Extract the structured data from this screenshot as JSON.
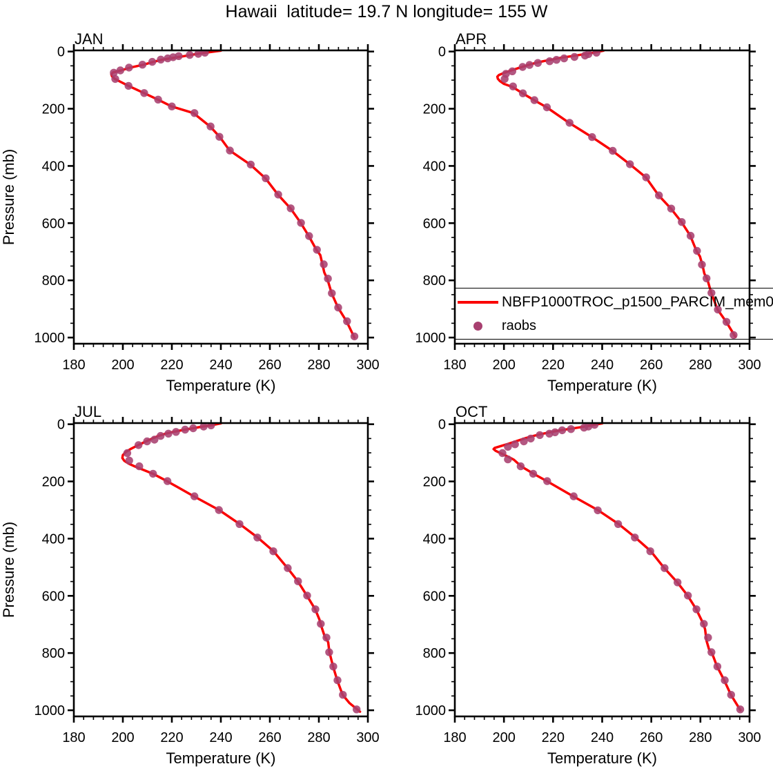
{
  "title": "Hawaii  latitude= 19.7 N longitude= 155 W",
  "legend": {
    "line_label": "NBFP1000TROC_p1500_PARCIM_mem0",
    "dot_label": "raobs",
    "position": "overlay-middle-right"
  },
  "colors": {
    "model_line": "#fa0000",
    "raobs_dot": "#a84070",
    "axis": "#000000",
    "background": "#ffffff"
  },
  "chart_data": {
    "type": "line",
    "title": "Hawaii  latitude= 19.7 N longitude= 155 W",
    "xlabel": "Temperature (K)",
    "ylabel": "Pressure (mb)",
    "x_axis": {
      "min": 180,
      "max": 300,
      "major_ticks": [
        180,
        200,
        220,
        240,
        260,
        280,
        300
      ],
      "minor_step": 4
    },
    "y_axis": {
      "min": 0,
      "max": 1000,
      "major_ticks": [
        0,
        200,
        400,
        600,
        800,
        1000
      ],
      "minor_step": 50,
      "reversed": true,
      "edge_min": -4,
      "edge_max": 1021.5
    },
    "grid": false,
    "series_info": [
      {
        "name": "NBFP1000TROC_p1500_PARCIM_mem0",
        "type": "line",
        "color": "#fa0000"
      },
      {
        "name": "raobs",
        "type": "scatter",
        "color": "#a84070"
      }
    ],
    "panels": [
      {
        "month": "JAN",
        "model_line": [
          [
            240,
            -3
          ],
          [
            235.5,
            2
          ],
          [
            232,
            6
          ],
          [
            228.5,
            11
          ],
          [
            225,
            16
          ],
          [
            221.5,
            21
          ],
          [
            218.5,
            25
          ],
          [
            215.8,
            29
          ],
          [
            212.5,
            36
          ],
          [
            208.5,
            46
          ],
          [
            203,
            56
          ],
          [
            199.3,
            66
          ],
          [
            196,
            73
          ],
          [
            195.3,
            80
          ],
          [
            195.6,
            87
          ],
          [
            196.8,
            96
          ],
          [
            199.3,
            107
          ],
          [
            202.3,
            120
          ],
          [
            208.6,
            145
          ],
          [
            214.3,
            168
          ],
          [
            219.9,
            192
          ],
          [
            228.8,
            215
          ],
          [
            235.6,
            262
          ],
          [
            239.5,
            298
          ],
          [
            243.6,
            346
          ],
          [
            252,
            395
          ],
          [
            258.2,
            443
          ],
          [
            263.3,
            500
          ],
          [
            268.4,
            548
          ],
          [
            272.6,
            599
          ],
          [
            275.9,
            645
          ],
          [
            279,
            693
          ],
          [
            280.6,
            712
          ],
          [
            281.4,
            742
          ],
          [
            282.2,
            772
          ],
          [
            283.5,
            796
          ],
          [
            285.2,
            845
          ],
          [
            287.8,
            895
          ],
          [
            291.3,
            943
          ],
          [
            294.5,
            1000
          ]
        ],
        "raobs": [
          [
            233.5,
            4
          ],
          [
            230.8,
            8
          ],
          [
            227.3,
            12
          ],
          [
            222.8,
            16
          ],
          [
            220.5,
            20
          ],
          [
            218.3,
            24
          ],
          [
            215.5,
            28
          ],
          [
            212,
            36
          ],
          [
            208,
            46
          ],
          [
            202.5,
            56
          ],
          [
            199,
            66
          ],
          [
            196.3,
            74
          ],
          [
            196.9,
            96
          ],
          [
            202.3,
            120
          ],
          [
            208.7,
            145
          ],
          [
            214.4,
            168
          ],
          [
            220,
            192
          ],
          [
            229.2,
            215
          ],
          [
            235.8,
            262
          ],
          [
            239.4,
            298
          ],
          [
            243.7,
            346
          ],
          [
            252.2,
            395
          ],
          [
            258.3,
            443
          ],
          [
            263.4,
            500
          ],
          [
            268.5,
            548
          ],
          [
            272.7,
            599
          ],
          [
            276,
            645
          ],
          [
            279.2,
            693
          ],
          [
            282,
            744
          ],
          [
            283.7,
            794
          ],
          [
            285.3,
            845
          ],
          [
            287.9,
            895
          ],
          [
            291.5,
            943
          ],
          [
            294.5,
            996
          ]
        ]
      },
      {
        "month": "APR",
        "model_line": [
          [
            240.5,
            -3
          ],
          [
            236.5,
            4
          ],
          [
            231.5,
            11
          ],
          [
            227,
            17
          ],
          [
            223,
            22
          ],
          [
            219.5,
            28
          ],
          [
            216,
            34
          ],
          [
            212.5,
            41
          ],
          [
            209.5,
            48
          ],
          [
            206.5,
            56
          ],
          [
            203,
            66
          ],
          [
            200,
            75
          ],
          [
            198,
            82
          ],
          [
            197.3,
            88
          ],
          [
            197.5,
            95
          ],
          [
            198.3,
            103
          ],
          [
            200,
            113
          ],
          [
            203.5,
            124
          ],
          [
            207.6,
            146
          ],
          [
            212.3,
            170
          ],
          [
            217.4,
            195
          ],
          [
            226.5,
            249
          ],
          [
            235.8,
            299
          ],
          [
            244.2,
            347
          ],
          [
            251.2,
            394
          ],
          [
            257.8,
            440
          ],
          [
            263,
            503
          ],
          [
            268,
            549
          ],
          [
            272.3,
            596
          ],
          [
            275.9,
            644
          ],
          [
            278.4,
            697
          ],
          [
            279.8,
            716
          ],
          [
            280.8,
            746
          ],
          [
            281.6,
            776
          ],
          [
            282.8,
            796
          ],
          [
            284.4,
            844
          ],
          [
            287,
            902
          ],
          [
            290.5,
            945
          ],
          [
            294.3,
            998
          ]
        ],
        "raobs": [
          [
            237.7,
            4
          ],
          [
            234.4,
            9
          ],
          [
            233,
            14
          ],
          [
            228.7,
            19
          ],
          [
            224.5,
            24
          ],
          [
            221.4,
            29
          ],
          [
            218.6,
            34
          ],
          [
            213.8,
            40
          ],
          [
            210.4,
            47
          ],
          [
            207.6,
            54
          ],
          [
            203.4,
            69
          ],
          [
            200.8,
            78
          ],
          [
            200.3,
            96
          ],
          [
            203.7,
            122
          ],
          [
            207.7,
            146
          ],
          [
            212.4,
            170
          ],
          [
            217.5,
            195
          ],
          [
            226.7,
            249
          ],
          [
            235.9,
            299
          ],
          [
            244.3,
            347
          ],
          [
            251.3,
            394
          ],
          [
            257.9,
            440
          ],
          [
            263.1,
            503
          ],
          [
            268.1,
            549
          ],
          [
            272.4,
            596
          ],
          [
            276,
            644
          ],
          [
            278.6,
            697
          ],
          [
            280.6,
            745
          ],
          [
            282.5,
            793
          ],
          [
            284.5,
            844
          ],
          [
            287.1,
            902
          ],
          [
            290.6,
            945
          ],
          [
            293.5,
            991
          ]
        ]
      },
      {
        "month": "JUL",
        "model_line": [
          [
            240,
            -3
          ],
          [
            236.5,
            3
          ],
          [
            232,
            9
          ],
          [
            228,
            15
          ],
          [
            224,
            21
          ],
          [
            220.5,
            27
          ],
          [
            217.5,
            33
          ],
          [
            214.5,
            41
          ],
          [
            212,
            50
          ],
          [
            209.5,
            60
          ],
          [
            206.5,
            72
          ],
          [
            203.5,
            85
          ],
          [
            201.2,
            97
          ],
          [
            200,
            108
          ],
          [
            199.8,
            118
          ],
          [
            200.6,
            128
          ],
          [
            202.4,
            138
          ],
          [
            205,
            148
          ],
          [
            208.5,
            160
          ],
          [
            212.5,
            174
          ],
          [
            218,
            199
          ],
          [
            229,
            252
          ],
          [
            239.3,
            300
          ],
          [
            247.7,
            349
          ],
          [
            255,
            396
          ],
          [
            261.5,
            444
          ],
          [
            267.2,
            503
          ],
          [
            271.4,
            549
          ],
          [
            275.1,
            599
          ],
          [
            278.5,
            647
          ],
          [
            280.2,
            682
          ],
          [
            281.2,
            712
          ],
          [
            282.4,
            742
          ],
          [
            283.8,
            762
          ],
          [
            284.3,
            797
          ],
          [
            285.8,
            847
          ],
          [
            287.5,
            895
          ],
          [
            289.7,
            946
          ],
          [
            292.5,
            975
          ],
          [
            296.8,
            1005
          ]
        ],
        "raobs": [
          [
            236,
            4
          ],
          [
            233,
            8
          ],
          [
            228.7,
            14
          ],
          [
            225.4,
            19
          ],
          [
            221.7,
            27
          ],
          [
            218.6,
            33
          ],
          [
            215.4,
            41
          ],
          [
            212.9,
            54
          ],
          [
            209.9,
            60
          ],
          [
            206.4,
            73
          ],
          [
            201.8,
            101
          ],
          [
            202.6,
            127
          ],
          [
            206.7,
            147
          ],
          [
            212.3,
            173
          ],
          [
            218.2,
            199
          ],
          [
            229.2,
            252
          ],
          [
            239.2,
            300
          ],
          [
            247.6,
            349
          ],
          [
            254.9,
            396
          ],
          [
            261.4,
            444
          ],
          [
            267.3,
            503
          ],
          [
            271.5,
            549
          ],
          [
            275.2,
            599
          ],
          [
            278.6,
            647
          ],
          [
            280.8,
            698
          ],
          [
            283.1,
            746
          ],
          [
            284.2,
            797
          ],
          [
            285.9,
            847
          ],
          [
            287.6,
            895
          ],
          [
            289.8,
            946
          ],
          [
            295.4,
            997
          ]
        ]
      },
      {
        "month": "OCT",
        "model_line": [
          [
            240,
            -3
          ],
          [
            236.3,
            3
          ],
          [
            231.5,
            10
          ],
          [
            227,
            16
          ],
          [
            223,
            21
          ],
          [
            219.5,
            27
          ],
          [
            216,
            33
          ],
          [
            212.5,
            40
          ],
          [
            209,
            48
          ],
          [
            205.5,
            58
          ],
          [
            202,
            68
          ],
          [
            198.5,
            77
          ],
          [
            196.2,
            83
          ],
          [
            195.8,
            87
          ],
          [
            196.6,
            93
          ],
          [
            198.6,
            101
          ],
          [
            201.8,
            114
          ],
          [
            204,
            124
          ],
          [
            207,
            147
          ],
          [
            212,
            173
          ],
          [
            217.5,
            199
          ],
          [
            228.2,
            252
          ],
          [
            238.4,
            301
          ],
          [
            246.7,
            349
          ],
          [
            253.5,
            396
          ],
          [
            259.8,
            444
          ],
          [
            265.3,
            503
          ],
          [
            270.6,
            553
          ],
          [
            274.8,
            599
          ],
          [
            278.3,
            647
          ],
          [
            281.2,
            698
          ],
          [
            281.9,
            717
          ],
          [
            282.5,
            757
          ],
          [
            283.5,
            787
          ],
          [
            284.8,
            802
          ],
          [
            286.8,
            847
          ],
          [
            289.7,
            895
          ],
          [
            292.4,
            946
          ],
          [
            296.3,
            1000
          ]
        ],
        "raobs": [
          [
            236.9,
            2
          ],
          [
            234.4,
            8
          ],
          [
            232.6,
            12
          ],
          [
            227.3,
            17
          ],
          [
            223.7,
            21
          ],
          [
            220.8,
            28
          ],
          [
            218.5,
            33
          ],
          [
            214.6,
            38
          ],
          [
            210.9,
            50
          ],
          [
            208.1,
            60
          ],
          [
            204.5,
            70
          ],
          [
            201.6,
            79
          ],
          [
            199.4,
            101
          ],
          [
            201.6,
            123
          ],
          [
            206.8,
            147
          ],
          [
            211.9,
            173
          ],
          [
            217.6,
            199
          ],
          [
            228.4,
            252
          ],
          [
            238.2,
            301
          ],
          [
            246.5,
            349
          ],
          [
            253.3,
            396
          ],
          [
            259.6,
            444
          ],
          [
            265.4,
            503
          ],
          [
            270.7,
            553
          ],
          [
            274.9,
            599
          ],
          [
            278.4,
            647
          ],
          [
            281.4,
            698
          ],
          [
            283.1,
            746
          ],
          [
            284.5,
            797
          ],
          [
            286.9,
            847
          ],
          [
            289.9,
            895
          ],
          [
            292.5,
            946
          ],
          [
            296.2,
            997
          ]
        ]
      }
    ]
  }
}
